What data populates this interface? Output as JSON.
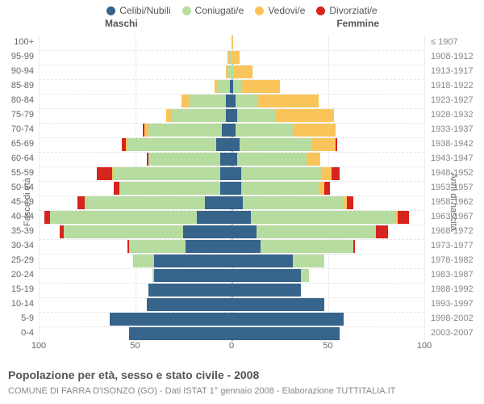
{
  "chart_type": "population_pyramid_stacked",
  "legend": [
    {
      "label": "Celibi/Nubili",
      "color": "#36648b"
    },
    {
      "label": "Coniugati/e",
      "color": "#b7dca0"
    },
    {
      "label": "Vedovi/e",
      "color": "#f9c55b"
    },
    {
      "label": "Divorziati/e",
      "color": "#d6241f"
    }
  ],
  "headers": {
    "male": "Maschi",
    "female": "Femmine"
  },
  "axis_left_label": "Fasce di età",
  "axis_right_label": "Anni di nascita",
  "age_labels": [
    "0-4",
    "5-9",
    "10-14",
    "15-19",
    "20-24",
    "25-29",
    "30-34",
    "35-39",
    "40-44",
    "45-49",
    "50-54",
    "55-59",
    "60-64",
    "65-69",
    "70-74",
    "75-79",
    "80-84",
    "85-89",
    "90-94",
    "95-99",
    "100+"
  ],
  "year_labels": [
    "2003-2007",
    "1998-2002",
    "1993-1997",
    "1988-1992",
    "1983-1987",
    "1978-1982",
    "1973-1977",
    "1968-1972",
    "1963-1967",
    "1958-1962",
    "1953-1957",
    "1948-1952",
    "1943-1947",
    "1938-1942",
    "1933-1937",
    "1928-1932",
    "1923-1927",
    "1918-1922",
    "1913-1917",
    "1908-1912",
    "≤ 1907"
  ],
  "x_ticks": [
    100,
    50,
    0,
    50,
    100
  ],
  "x_max": 100,
  "colors": {
    "bg": "#ffffff",
    "grid": "#eeeeee",
    "rowdash": "#e6e6e6",
    "center": "#aaaaaa",
    "axis_text": "#666666"
  },
  "title": "Popolazione per età, sesso e stato civile - 2008",
  "subtitle": "COMUNE DI FARRA D'ISONZO (GO) - Dati ISTAT 1° gennaio 2008 - Elaborazione TUTTITALIA.IT",
  "rows": [
    {
      "m": [
        53,
        0,
        0,
        0
      ],
      "f": [
        56,
        0,
        0,
        0
      ]
    },
    {
      "m": [
        63,
        0,
        0,
        0
      ],
      "f": [
        58,
        0,
        0,
        0
      ]
    },
    {
      "m": [
        44,
        0,
        0,
        0
      ],
      "f": [
        48,
        0,
        0,
        0
      ]
    },
    {
      "m": [
        43,
        0,
        0,
        0
      ],
      "f": [
        36,
        0,
        0,
        0
      ]
    },
    {
      "m": [
        40,
        1,
        0,
        0
      ],
      "f": [
        36,
        4,
        0,
        0
      ]
    },
    {
      "m": [
        40,
        11,
        0,
        0
      ],
      "f": [
        32,
        16,
        0,
        0
      ]
    },
    {
      "m": [
        24,
        29,
        0,
        1
      ],
      "f": [
        15,
        48,
        0,
        1
      ]
    },
    {
      "m": [
        25,
        62,
        0,
        2
      ],
      "f": [
        13,
        62,
        0,
        6
      ]
    },
    {
      "m": [
        18,
        76,
        0,
        3
      ],
      "f": [
        10,
        75,
        1,
        6
      ]
    },
    {
      "m": [
        14,
        62,
        0,
        4
      ],
      "f": [
        6,
        52,
        2,
        3
      ]
    },
    {
      "m": [
        6,
        52,
        0,
        3
      ],
      "f": [
        5,
        40,
        3,
        3
      ]
    },
    {
      "m": [
        6,
        55,
        1,
        8
      ],
      "f": [
        5,
        42,
        5,
        4
      ]
    },
    {
      "m": [
        6,
        37,
        0,
        1
      ],
      "f": [
        3,
        36,
        7,
        0
      ]
    },
    {
      "m": [
        8,
        46,
        1,
        2
      ],
      "f": [
        4,
        38,
        12,
        1
      ]
    },
    {
      "m": [
        5,
        38,
        2,
        1
      ],
      "f": [
        2,
        30,
        22,
        0
      ]
    },
    {
      "m": [
        3,
        28,
        3,
        0
      ],
      "f": [
        3,
        20,
        30,
        0
      ]
    },
    {
      "m": [
        3,
        19,
        4,
        0
      ],
      "f": [
        2,
        12,
        31,
        0
      ]
    },
    {
      "m": [
        1,
        6,
        2,
        0
      ],
      "f": [
        1,
        4,
        20,
        0
      ]
    },
    {
      "m": [
        0,
        2,
        1,
        0
      ],
      "f": [
        0,
        1,
        10,
        0
      ]
    },
    {
      "m": [
        0,
        1,
        1,
        0
      ],
      "f": [
        0,
        0,
        4,
        0
      ]
    },
    {
      "m": [
        0,
        0,
        0,
        0
      ],
      "f": [
        0,
        0,
        1,
        0
      ]
    }
  ]
}
